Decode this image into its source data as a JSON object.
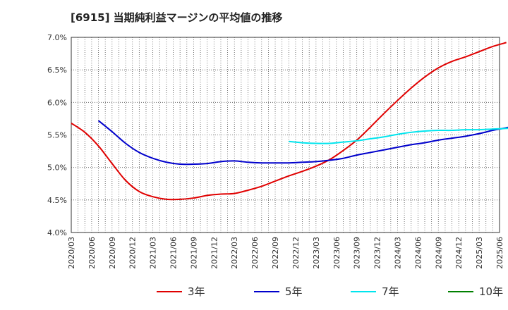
{
  "chart_data": {
    "type": "line",
    "title": "[6915]  当期純利益マージンの平均値の推移",
    "xlabel": "",
    "ylabel": "",
    "ylim": [
      4.0,
      7.0
    ],
    "yticks": [
      "4.0%",
      "4.5%",
      "5.0%",
      "5.5%",
      "6.0%",
      "6.5%",
      "7.0%"
    ],
    "ytick_values": [
      4.0,
      4.5,
      5.0,
      5.5,
      6.0,
      6.5,
      7.0
    ],
    "x_categories": [
      "2020/03",
      "2020/06",
      "2020/09",
      "2020/12",
      "2021/03",
      "2021/06",
      "2021/09",
      "2021/12",
      "2022/03",
      "2022/06",
      "2022/09",
      "2022/12",
      "2023/03",
      "2023/06",
      "2023/09",
      "2023/12",
      "2024/03",
      "2024/06",
      "2024/09",
      "2024/12",
      "2025/03",
      "2025/06"
    ],
    "grid": true,
    "legend_position": "bottom",
    "series": [
      {
        "name": "3年",
        "color": "#e00000",
        "start_index": 0,
        "values": [
          5.68,
          5.54,
          5.33,
          5.06,
          4.8,
          4.63,
          4.55,
          4.51,
          4.51,
          4.53,
          4.57,
          4.59,
          4.6,
          4.65,
          4.71,
          4.79,
          4.87,
          4.94,
          5.02,
          5.12,
          5.26,
          5.42,
          5.62,
          5.83,
          6.03,
          6.22,
          6.39,
          6.53,
          6.63,
          6.7,
          6.78,
          6.86,
          6.92
        ]
      },
      {
        "name": "5年",
        "color": "#0000cc",
        "start_index": 4,
        "values": [
          5.72,
          5.55,
          5.37,
          5.23,
          5.14,
          5.08,
          5.05,
          5.05,
          5.06,
          5.09,
          5.1,
          5.08,
          5.07,
          5.07,
          5.07,
          5.08,
          5.09,
          5.11,
          5.14,
          5.19,
          5.23,
          5.27,
          5.31,
          5.35,
          5.38,
          5.42,
          5.45,
          5.48,
          5.52,
          5.57,
          5.61,
          5.66,
          5.72,
          5.77,
          5.82
        ]
      },
      {
        "name": "7年",
        "color": "#00e5ee",
        "start_index": 32,
        "values": [
          5.4,
          5.38,
          5.37,
          5.37,
          5.39,
          5.41,
          5.44,
          5.47,
          5.51,
          5.54,
          5.56,
          5.57,
          5.57,
          5.58,
          5.58,
          5.59,
          5.6,
          5.62,
          5.65,
          5.7
        ]
      },
      {
        "name": "10年",
        "color": "#008000",
        "start_index": 0,
        "values": []
      }
    ]
  }
}
